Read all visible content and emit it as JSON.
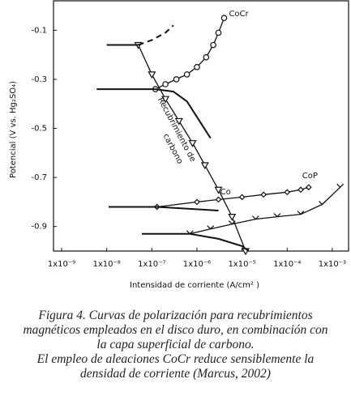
{
  "chart_data": {
    "type": "line",
    "x_label": "Intensidad de corriente (A/cm² )",
    "y_label": "Potencial (V vs. Hg₂SO₄)",
    "xscale": "log",
    "xlim": [
      6.6e-10,
      0.0023
    ],
    "ylim": [
      -1.0,
      0.02
    ],
    "xticks": [
      {
        "value": 1e-09,
        "label": "1x10⁻⁹"
      },
      {
        "value": 1e-08,
        "label": "1x10⁻⁸"
      },
      {
        "value": 1e-07,
        "label": "1x10⁻⁷"
      },
      {
        "value": 1e-06,
        "label": "1x10⁻⁶"
      },
      {
        "value": 1e-05,
        "label": "1x10⁻⁵"
      },
      {
        "value": 0.0001,
        "label": "1x10⁻⁴"
      },
      {
        "value": 0.001,
        "label": "1x10⁻³"
      }
    ],
    "yticks": [
      -0.1,
      -0.3,
      -0.5,
      -0.7,
      -0.9
    ],
    "grid": false,
    "color": "#111111",
    "annotation": [
      "Recubrimiento de",
      "carbono"
    ],
    "series": [
      {
        "name": "CoCr",
        "marker": "circle",
        "x": [
          1.2e-07,
          2e-07,
          3.5e-07,
          6e-07,
          1e-06,
          1.6e-06,
          2.3e-06,
          3e-06,
          4e-06
        ],
        "values": [
          -0.34,
          -0.32,
          -0.3,
          -0.28,
          -0.25,
          -0.21,
          -0.16,
          -0.11,
          -0.05
        ]
      },
      {
        "marker": "triangle",
        "x": [
          5e-08,
          1e-07,
          2e-07,
          4e-07,
          8e-07,
          1.5e-06,
          3e-06,
          6e-06,
          1.2e-05
        ],
        "values": [
          -0.16,
          -0.28,
          -0.38,
          -0.47,
          -0.56,
          -0.65,
          -0.75,
          -0.86,
          -1.0
        ]
      },
      {
        "name": "CoP",
        "marker": "diamond",
        "x": [
          1.3e-07,
          1e-06,
          3e-06,
          1e-05,
          3e-05,
          0.0001,
          0.0002,
          0.0003
        ],
        "values": [
          -0.82,
          -0.8,
          -0.79,
          -0.78,
          -0.77,
          -0.76,
          -0.75,
          -0.74
        ]
      },
      {
        "name": "Co",
        "marker": "check",
        "x": [
          7e-07,
          2e-06,
          6e-06,
          2e-05,
          6e-05,
          0.0002,
          0.0006,
          0.0015
        ],
        "values": [
          -0.93,
          -0.91,
          -0.89,
          -0.87,
          -0.86,
          -0.85,
          -0.81,
          -0.74
        ]
      },
      {
        "x": [
          1e-08,
          5e-08
        ],
        "values": [
          -0.16,
          -0.16
        ]
      },
      {
        "dash": true,
        "x": [
          5e-08,
          1e-07,
          2e-07,
          3e-07
        ],
        "values": [
          -0.16,
          -0.14,
          -0.11,
          -0.08
        ]
      },
      {
        "x": [
          6e-09,
          1.2e-07
        ],
        "values": [
          -0.34,
          -0.34
        ]
      },
      {
        "x": [
          1.2e-07,
          3e-07,
          6e-07,
          2e-06
        ],
        "values": [
          -0.34,
          -0.35,
          -0.39,
          -0.54
        ]
      },
      {
        "x": [
          1.1e-08,
          1.3e-07
        ],
        "values": [
          -0.82,
          -0.82
        ]
      },
      {
        "x": [
          1.3e-07,
          3e-06
        ],
        "values": [
          -0.82,
          -0.835
        ]
      },
      {
        "x": [
          6e-08,
          7e-07
        ],
        "values": [
          -0.93,
          -0.93
        ]
      },
      {
        "x": [
          7e-07,
          3e-06,
          1e-05,
          1.4e-05
        ],
        "values": [
          -0.93,
          -0.95,
          -0.98,
          -1.0
        ]
      }
    ]
  },
  "caption": [
    "Figura 4. Curvas de polarización para recubrimientos",
    "magnéticos empleados en el disco duro, en combinación con",
    "la capa superficial de carbono.",
    "El empleo de aleaciones CoCr reduce sensiblemente la",
    "densidad de corriente (Marcus, 2002)"
  ]
}
